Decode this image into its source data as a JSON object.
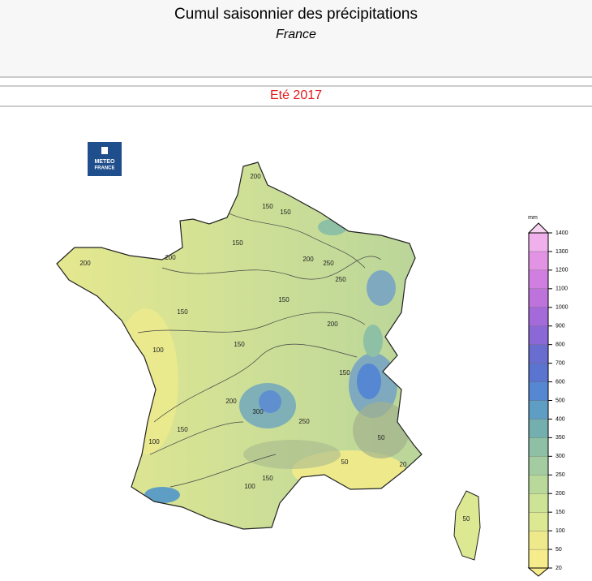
{
  "header": {
    "title": "Cumul saisonnier des précipitations",
    "subtitle": "France"
  },
  "season": "Eté 2017",
  "logo": {
    "line1": "METEO",
    "line2": "FRANCE"
  },
  "legend": {
    "unit": "mm",
    "ticks": [
      20,
      50,
      100,
      150,
      200,
      250,
      300,
      350,
      400,
      500,
      600,
      700,
      800,
      900,
      1000,
      1100,
      1200,
      1300,
      1400
    ],
    "colors": [
      "#f7ec8c",
      "#eeea8c",
      "#dde892",
      "#cde395",
      "#b9d99a",
      "#a3cda0",
      "#8dc0a5",
      "#74afaf",
      "#5f9ec4",
      "#5587d3",
      "#5a74cf",
      "#6a6dd0",
      "#8a68d6",
      "#a56ad9",
      "#bd72dc",
      "#d07fe0",
      "#e293e4",
      "#efb0ec"
    ],
    "below_color": "#f7ec8c",
    "above_color": "#f7d4f2"
  },
  "contour_labels": [
    "200",
    "150",
    "150",
    "150",
    "200",
    "200",
    "250",
    "200",
    "250",
    "150",
    "150",
    "100",
    "150",
    "200",
    "300",
    "250",
    "200",
    "150",
    "100",
    "50",
    "50",
    "20",
    "150",
    "100",
    "150",
    "50"
  ]
}
